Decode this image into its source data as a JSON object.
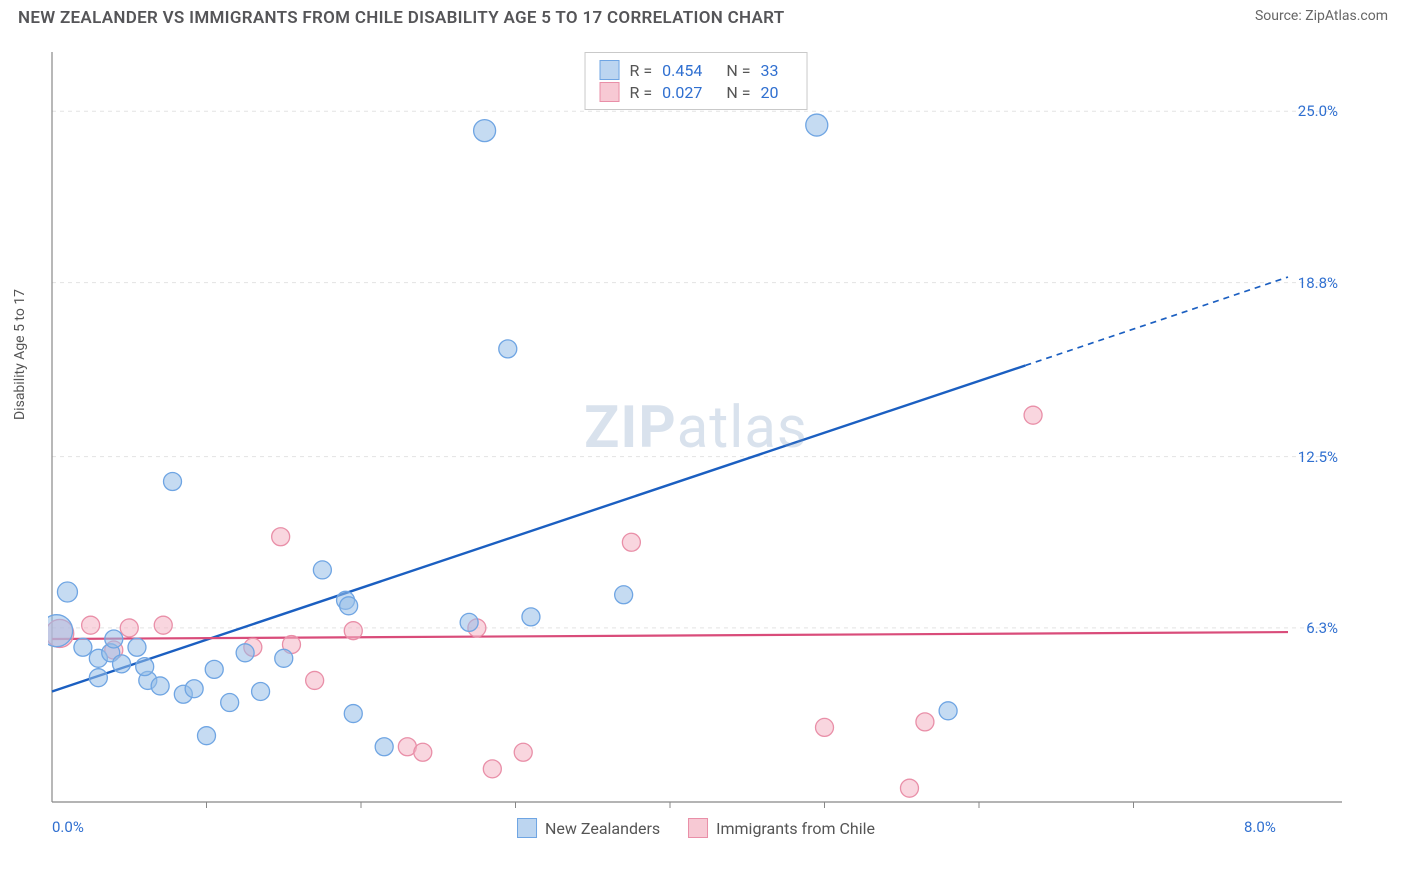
{
  "header": {
    "title": "NEW ZEALANDER VS IMMIGRANTS FROM CHILE DISABILITY AGE 5 TO 17 CORRELATION CHART",
    "source": "Source: ZipAtlas.com"
  },
  "chart": {
    "type": "scatter",
    "y_axis_label": "Disability Age 5 to 17",
    "xlim": [
      0,
      8
    ],
    "ylim": [
      0,
      27
    ],
    "x_ticks_minor": [
      1,
      2,
      3,
      4,
      5,
      6,
      7
    ],
    "x_tick_labels": [
      {
        "x": 0,
        "label": "0.0%",
        "align": "left"
      },
      {
        "x": 8,
        "label": "8.0%",
        "align": "right"
      }
    ],
    "y_grid_lines": [
      6.3,
      12.5,
      18.8,
      25.0
    ],
    "y_tick_labels": [
      {
        "y": 6.3,
        "label": "6.3%"
      },
      {
        "y": 12.5,
        "label": "12.5%"
      },
      {
        "y": 18.8,
        "label": "18.8%"
      },
      {
        "y": 25.0,
        "label": "25.0%"
      }
    ],
    "background_color": "#ffffff",
    "grid_color": "#e3e3e3",
    "axis_color": "#888888",
    "tick_label_color": "#2f6fd0",
    "watermark": {
      "bold": "ZIP",
      "rest": "atlas"
    },
    "legend_top": [
      {
        "swatch_fill": "#bcd5f0",
        "swatch_border": "#6fa5e3",
        "r_label": "R =",
        "r_value": "0.454",
        "n_label": "N =",
        "n_value": "33"
      },
      {
        "swatch_fill": "#f7c9d4",
        "swatch_border": "#e98fa8",
        "r_label": "R =",
        "r_value": "0.027",
        "n_label": "N =",
        "n_value": "20"
      }
    ],
    "legend_bottom": [
      {
        "swatch_fill": "#bcd5f0",
        "swatch_border": "#6fa5e3",
        "label": "New Zealanders"
      },
      {
        "swatch_fill": "#f7c9d4",
        "swatch_border": "#e98fa8",
        "label": "Immigrants from Chile"
      }
    ],
    "series": [
      {
        "name": "New Zealanders",
        "marker_fill": "rgba(150,190,232,0.55)",
        "marker_stroke": "#6fa5e3",
        "marker_r_default": 9,
        "trend_color": "#1b5fc1",
        "trend_width": 2.4,
        "trend": {
          "x1": 0,
          "y1": 4.0,
          "x2": 6.3,
          "y2": 15.8,
          "x3": 8.0,
          "y3": 19.0
        },
        "points": [
          {
            "x": 0.03,
            "y": 6.2,
            "r": 16
          },
          {
            "x": 0.1,
            "y": 7.6,
            "r": 10
          },
          {
            "x": 0.2,
            "y": 5.6
          },
          {
            "x": 0.3,
            "y": 5.2
          },
          {
            "x": 0.38,
            "y": 5.4
          },
          {
            "x": 0.45,
            "y": 5.0
          },
          {
            "x": 0.55,
            "y": 5.6
          },
          {
            "x": 0.62,
            "y": 4.4
          },
          {
            "x": 0.7,
            "y": 4.2
          },
          {
            "x": 0.78,
            "y": 11.6
          },
          {
            "x": 0.85,
            "y": 3.9
          },
          {
            "x": 0.92,
            "y": 4.1
          },
          {
            "x": 1.0,
            "y": 2.4
          },
          {
            "x": 1.05,
            "y": 4.8
          },
          {
            "x": 1.15,
            "y": 3.6
          },
          {
            "x": 1.25,
            "y": 5.4
          },
          {
            "x": 1.35,
            "y": 4.0
          },
          {
            "x": 1.5,
            "y": 5.2
          },
          {
            "x": 1.75,
            "y": 8.4
          },
          {
            "x": 1.9,
            "y": 7.3
          },
          {
            "x": 1.92,
            "y": 7.1
          },
          {
            "x": 1.95,
            "y": 3.2
          },
          {
            "x": 2.15,
            "y": 2.0
          },
          {
            "x": 2.7,
            "y": 6.5
          },
          {
            "x": 2.95,
            "y": 16.4
          },
          {
            "x": 2.8,
            "y": 24.3,
            "r": 11
          },
          {
            "x": 3.1,
            "y": 6.7
          },
          {
            "x": 3.7,
            "y": 7.5
          },
          {
            "x": 4.95,
            "y": 24.5,
            "r": 11
          },
          {
            "x": 5.8,
            "y": 3.3
          },
          {
            "x": 0.3,
            "y": 4.5
          },
          {
            "x": 0.4,
            "y": 5.9
          },
          {
            "x": 0.6,
            "y": 4.9
          }
        ]
      },
      {
        "name": "Immigrants from Chile",
        "marker_fill": "rgba(244,180,197,0.55)",
        "marker_stroke": "#e98fa8",
        "marker_r_default": 9,
        "trend_color": "#d94c7a",
        "trend_width": 2.2,
        "trend": {
          "x1": 0,
          "y1": 5.9,
          "x2": 8.0,
          "y2": 6.15
        },
        "points": [
          {
            "x": 0.05,
            "y": 6.1,
            "r": 14
          },
          {
            "x": 0.25,
            "y": 6.4
          },
          {
            "x": 0.5,
            "y": 6.3
          },
          {
            "x": 0.72,
            "y": 6.4
          },
          {
            "x": 1.3,
            "y": 5.6
          },
          {
            "x": 1.48,
            "y": 9.6
          },
          {
            "x": 1.55,
            "y": 5.7
          },
          {
            "x": 1.7,
            "y": 4.4
          },
          {
            "x": 1.95,
            "y": 6.2
          },
          {
            "x": 2.3,
            "y": 2.0
          },
          {
            "x": 2.4,
            "y": 1.8
          },
          {
            "x": 2.75,
            "y": 6.3
          },
          {
            "x": 2.85,
            "y": 1.2
          },
          {
            "x": 3.05,
            "y": 1.8
          },
          {
            "x": 3.75,
            "y": 9.4
          },
          {
            "x": 5.0,
            "y": 2.7
          },
          {
            "x": 5.65,
            "y": 2.9
          },
          {
            "x": 5.55,
            "y": 0.5
          },
          {
            "x": 6.35,
            "y": 14.0
          },
          {
            "x": 0.4,
            "y": 5.5
          }
        ]
      }
    ]
  }
}
